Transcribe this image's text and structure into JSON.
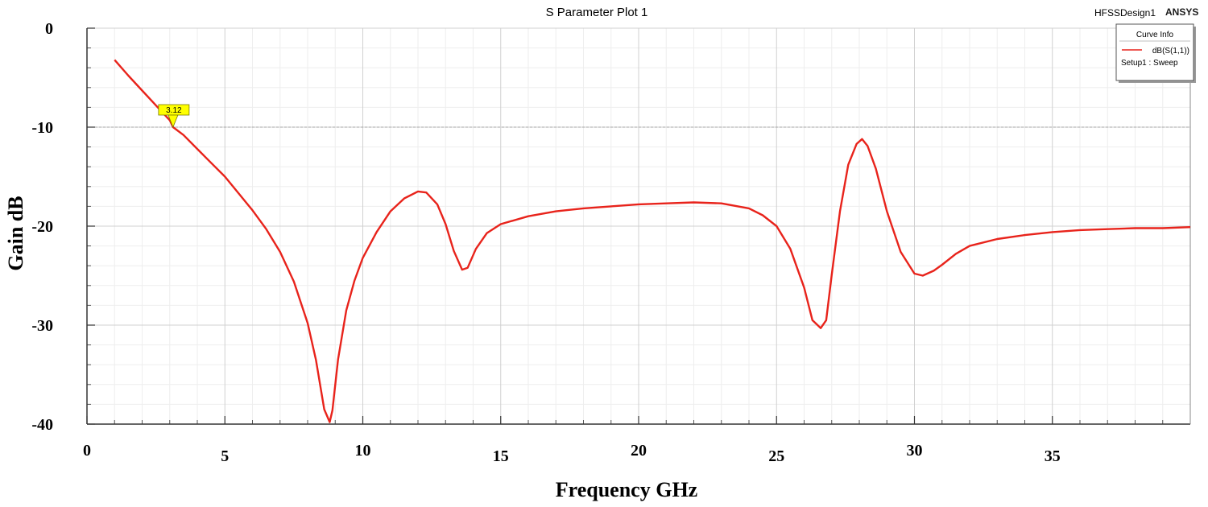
{
  "header": {
    "design_name": "HFSSDesign1",
    "brand": "ANSYS"
  },
  "chart_data": {
    "type": "line",
    "title": "S Parameter Plot 1",
    "xlabel": "Frequency GHz",
    "ylabel": "Gain dB",
    "xlim": [
      0,
      40
    ],
    "ylim": [
      -40,
      0
    ],
    "x_ticks": [
      0,
      5,
      10,
      15,
      20,
      25,
      30,
      35
    ],
    "x_tick_labels": [
      "0",
      "5",
      "10",
      "15",
      "20",
      "25",
      "30",
      "35"
    ],
    "y_ticks": [
      0,
      -10,
      -20,
      -30,
      -40
    ],
    "y_tick_labels": [
      "0",
      "-10",
      "-20",
      "-30",
      "-40"
    ],
    "grid": true,
    "reference_line": {
      "y": -10,
      "style": "dashed",
      "color": "#a6a6a6"
    },
    "legend": {
      "title": "Curve Info",
      "placement": "top-right",
      "entries": [
        {
          "label": "dB(S(1,1))",
          "sublabel": "Setup1 : Sweep",
          "color": "#e8231b"
        }
      ]
    },
    "marker": {
      "label": "3.12",
      "x": 3.12,
      "y": -10,
      "color": "#ffff00"
    },
    "series": [
      {
        "name": "dB(S(1,1))",
        "color": "#e8231b",
        "x": [
          1,
          1.5,
          2,
          2.5,
          3,
          3.12,
          3.5,
          4,
          4.5,
          5,
          5.5,
          6,
          6.5,
          7,
          7.5,
          8,
          8.3,
          8.6,
          8.8,
          8.9,
          9.1,
          9.4,
          9.7,
          10,
          10.5,
          11,
          11.5,
          12,
          12.3,
          12.7,
          13,
          13.3,
          13.6,
          13.8,
          14.1,
          14.5,
          15,
          16,
          17,
          18,
          19,
          20,
          21,
          22,
          23,
          24,
          24.5,
          25,
          25.5,
          26,
          26.3,
          26.6,
          26.8,
          27,
          27.3,
          27.6,
          27.9,
          28.1,
          28.3,
          28.6,
          29,
          29.5,
          30,
          30.3,
          30.7,
          31,
          31.5,
          32,
          33,
          34,
          35,
          36,
          37,
          38,
          39,
          40
        ],
        "y": [
          -3.2,
          -4.8,
          -6.3,
          -7.8,
          -9.3,
          -10,
          -10.8,
          -12.2,
          -13.6,
          -15,
          -16.7,
          -18.4,
          -20.3,
          -22.6,
          -25.6,
          -29.8,
          -33.5,
          -38.5,
          -39.8,
          -38.6,
          -33.5,
          -28.5,
          -25.5,
          -23.2,
          -20.6,
          -18.5,
          -17.2,
          -16.5,
          -16.6,
          -17.8,
          -19.8,
          -22.5,
          -24.4,
          -24.2,
          -22.3,
          -20.7,
          -19.8,
          -19,
          -18.5,
          -18.2,
          -18,
          -17.8,
          -17.7,
          -17.6,
          -17.7,
          -18.2,
          -18.9,
          -20,
          -22.3,
          -26.2,
          -29.5,
          -30.3,
          -29.5,
          -24.9,
          -18.5,
          -13.8,
          -11.7,
          -11.2,
          -11.9,
          -14.2,
          -18.5,
          -22.6,
          -24.8,
          -25,
          -24.5,
          -23.9,
          -22.8,
          -22,
          -21.3,
          -20.9,
          -20.6,
          -20.4,
          -20.3,
          -20.2,
          -20.2,
          -20.1
        ]
      }
    ]
  }
}
